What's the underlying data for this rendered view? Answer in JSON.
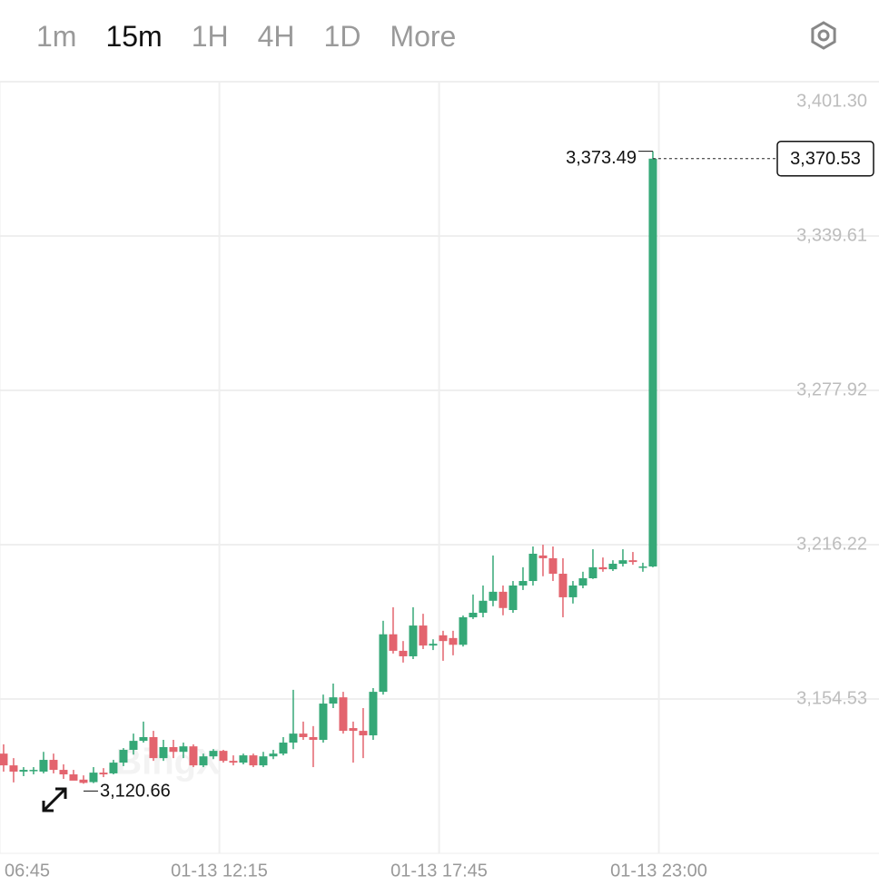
{
  "toolbar": {
    "tabs": [
      "1m",
      "15m",
      "1H",
      "4H",
      "1D",
      "More"
    ],
    "active": 1
  },
  "chart_data": {
    "type": "candlestick",
    "watermark": "BingX",
    "open": [
      3132.7,
      3128.0,
      3125.5,
      3125.8,
      3125.5,
      3130.2,
      3126.2,
      3124.4,
      3122.3,
      3121.3,
      3125.1,
      3124.8,
      3129.1,
      3134.2,
      3137.8,
      3139.3,
      3130.9,
      3135.3,
      3133.4,
      3135.6,
      3128.0,
      3131.6,
      3133.8,
      3129.8,
      3129.1,
      3132.0,
      3128.0,
      3131.6,
      3132.7,
      3137.1,
      3140.7,
      3139.3,
      3138.2,
      3152.7,
      3155.2,
      3142.9,
      3141.8,
      3140.0,
      3157.4,
      3180.4,
      3173.8,
      3171.6,
      3183.9,
      3175.9,
      3180.0,
      3178.9,
      3176.2,
      3187.2,
      3189.0,
      3193.8,
      3197.4,
      3190.1,
      3199.9,
      3201.7,
      3211.9,
      3210.8,
      3204.6,
      3195.2,
      3199.9,
      3202.8,
      3207.2,
      3206.4,
      3208.6,
      3210.0,
      3207.2,
      3207.5
    ],
    "high": [
      3136.4,
      3130.9,
      3127.3,
      3127.3,
      3133.4,
      3132.7,
      3128.4,
      3126.2,
      3124.0,
      3127.3,
      3126.9,
      3130.2,
      3134.9,
      3140.7,
      3145.5,
      3141.8,
      3138.2,
      3138.2,
      3137.1,
      3136.4,
      3132.7,
      3134.5,
      3134.2,
      3132.0,
      3132.7,
      3132.7,
      3133.4,
      3134.2,
      3139.3,
      3158.2,
      3145.5,
      3143.7,
      3156.3,
      3160.7,
      3157.4,
      3145.5,
      3150.9,
      3158.9,
      3185.8,
      3191.2,
      3177.7,
      3191.2,
      3188.6,
      3178.4,
      3181.8,
      3181.8,
      3187.9,
      3196.3,
      3199.9,
      3211.9,
      3199.9,
      3201.7,
      3207.2,
      3215.5,
      3216.2,
      3215.5,
      3210.8,
      3201.7,
      3205.4,
      3214.4,
      3211.1,
      3210.0,
      3214.4,
      3213.3,
      3209.0,
      3373.49
    ],
    "low": [
      3125.5,
      3121.2,
      3123.7,
      3124.4,
      3124.8,
      3124.8,
      3122.6,
      3122.3,
      3120.66,
      3120.9,
      3123.3,
      3124.4,
      3127.7,
      3132.3,
      3137.1,
      3129.8,
      3129.8,
      3130.9,
      3130.9,
      3127.3,
      3127.3,
      3130.5,
      3129.1,
      3128.0,
      3128.4,
      3127.3,
      3127.3,
      3130.5,
      3132.0,
      3134.5,
      3138.2,
      3127.3,
      3137.1,
      3150.9,
      3140.7,
      3129.1,
      3130.9,
      3138.2,
      3156.3,
      3172.7,
      3169.1,
      3170.5,
      3174.5,
      3174.1,
      3169.8,
      3172.0,
      3175.5,
      3186.5,
      3187.2,
      3191.6,
      3188.0,
      3189.0,
      3198.1,
      3199.9,
      3203.6,
      3201.7,
      3187.2,
      3192.7,
      3198.8,
      3202.5,
      3205.4,
      3205.7,
      3207.5,
      3208.2,
      3205.4,
      3207.2
    ],
    "close": [
      3128.0,
      3125.5,
      3126.2,
      3126.2,
      3130.2,
      3126.2,
      3124.4,
      3121.9,
      3121.0,
      3125.1,
      3124.4,
      3129.1,
      3134.2,
      3137.8,
      3139.3,
      3130.9,
      3135.3,
      3133.4,
      3135.6,
      3128.0,
      3131.6,
      3133.8,
      3129.8,
      3129.1,
      3132.0,
      3128.0,
      3131.6,
      3132.7,
      3137.1,
      3140.7,
      3139.3,
      3138.2,
      3152.7,
      3155.2,
      3141.8,
      3141.8,
      3140.0,
      3157.4,
      3180.4,
      3173.8,
      3171.6,
      3183.9,
      3175.9,
      3176.6,
      3177.7,
      3176.2,
      3187.2,
      3189.0,
      3193.8,
      3197.4,
      3190.9,
      3199.9,
      3201.7,
      3212.6,
      3210.8,
      3204.6,
      3195.2,
      3199.9,
      3202.8,
      3207.2,
      3206.4,
      3208.6,
      3210.0,
      3209.3,
      3207.5,
      3370.53
    ],
    "up_color": "#35a877",
    "down_color": "#e3646e",
    "max_label": "3,373.49",
    "min_label": "3,120.66",
    "last_price_label": "3,370.53",
    "ylim": [
      3092.84,
      3401.3
    ],
    "yticks": [
      {
        "value": 3401.3,
        "label": "3,401.30"
      },
      {
        "value": 3339.61,
        "label": "3,339.61"
      },
      {
        "value": 3277.92,
        "label": "3,277.92"
      },
      {
        "value": 3216.22,
        "label": "3,216.22"
      },
      {
        "value": 3154.53,
        "label": "3,154.53"
      }
    ],
    "xlim": [
      -0.36,
      87.64
    ],
    "xticks": [
      {
        "value": -0.4,
        "label": "06:45"
      },
      {
        "value": 21.6,
        "label": "01-13 12:15"
      },
      {
        "value": 43.6,
        "label": "01-13 17:45"
      },
      {
        "value": 65.6,
        "label": "01-13 23:00"
      }
    ],
    "grid": true
  }
}
